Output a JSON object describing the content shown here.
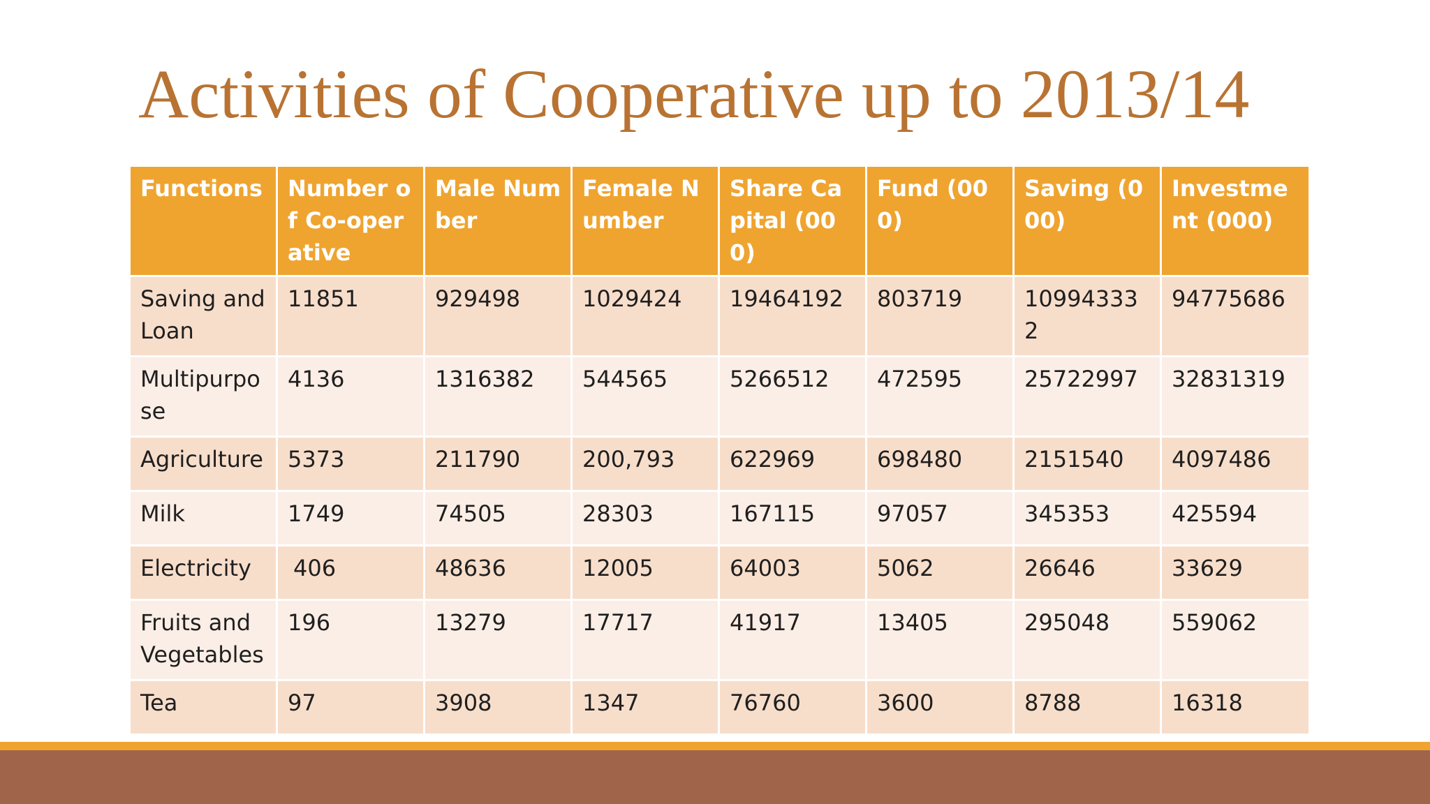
{
  "slide": {
    "title": "Activities of Cooperative up to 2013/14"
  },
  "colors": {
    "title": "#B87333",
    "header_bg": "#EFA430",
    "row_band_dark": "#F7DECB",
    "row_band_light": "#FBEEE6",
    "footer_accent": "#EFA430",
    "footer_bar": "#A0644A"
  },
  "table": {
    "headers": [
      "Functions",
      "Number of Co-operative",
      "Male Number",
      "Female Number",
      "Share Capital (000)",
      "Fund (000)",
      "Saving (000)",
      "Investment (000)"
    ],
    "rows": [
      [
        "Saving and Loan",
        "11851",
        "929498",
        "1029424",
        "19464192",
        "803719",
        "109943332",
        "94775686"
      ],
      [
        "Multipurpose",
        "4136",
        "1316382",
        "544565",
        "5266512",
        "472595",
        "25722997",
        "32831319"
      ],
      [
        "Agriculture",
        "5373",
        "211790",
        "200,793",
        "622969",
        "698480",
        "2151540",
        "4097486"
      ],
      [
        "Milk",
        "1749",
        "74505",
        "28303",
        "167115",
        "97057",
        "345353",
        "425594"
      ],
      [
        "Electricity",
        "406",
        "48636",
        "12005",
        "64003",
        "5062",
        "26646",
        "33629"
      ],
      [
        "Fruits and Vegetables",
        "196",
        "13279",
        "17717",
        "41917",
        "13405",
        "295048",
        "559062"
      ],
      [
        "Tea",
        "97",
        "3908",
        "1347",
        "76760",
        "3600",
        "8788",
        "16318"
      ]
    ]
  }
}
